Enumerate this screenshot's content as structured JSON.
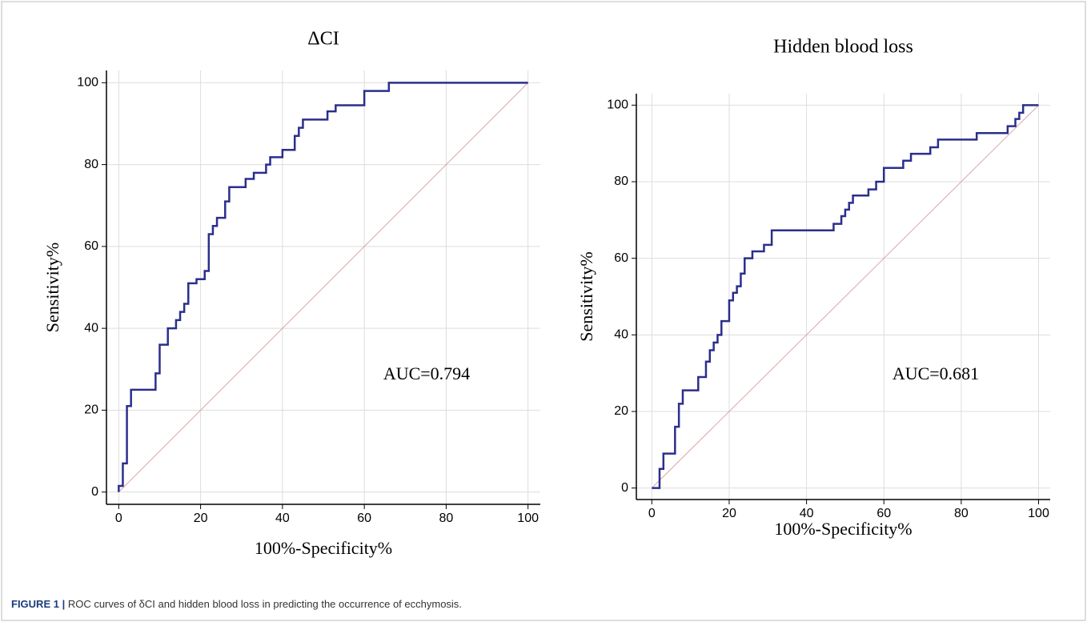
{
  "chart_data": [
    {
      "type": "line",
      "title": "ΔCI",
      "x_label": "100%-Specificity%",
      "y_label": "Sensitivity%",
      "annotation": "AUC=0.794",
      "xlim": [
        -3,
        103
      ],
      "ylim": [
        -3,
        103
      ],
      "xticks": [
        0,
        20,
        40,
        60,
        80,
        100
      ],
      "yticks": [
        0,
        20,
        40,
        60,
        80,
        100
      ],
      "grid": true,
      "series": [
        {
          "color": "#2b2e8c",
          "x": [
            0,
            0,
            1,
            1,
            2,
            2,
            3,
            3,
            9,
            9,
            10,
            10,
            12,
            12,
            14,
            14,
            15,
            15,
            16,
            16,
            17,
            17,
            19,
            19,
            21,
            21,
            22,
            22,
            23,
            23,
            24,
            24,
            26,
            26,
            27,
            27,
            31,
            31,
            33,
            33,
            36,
            36,
            37,
            37,
            40,
            40,
            43,
            43,
            44,
            44,
            45,
            45,
            51,
            51,
            53,
            53,
            60,
            60,
            66,
            66,
            100
          ],
          "values": [
            0,
            1.5,
            1.5,
            7,
            7,
            21,
            21,
            25,
            25,
            29,
            29,
            36,
            36,
            40,
            40,
            42,
            42,
            44,
            44,
            46,
            46,
            51,
            51,
            52,
            52,
            54,
            54,
            63,
            63,
            65,
            65,
            67,
            67,
            71,
            71,
            74.5,
            74.5,
            76.5,
            76.5,
            78,
            78,
            80,
            80,
            81.8,
            81.8,
            83.6,
            83.6,
            87,
            87,
            89,
            89,
            91,
            91,
            93,
            93,
            94.5,
            94.5,
            98,
            98,
            100,
            100
          ]
        },
        {
          "color": "#d9a8a8",
          "x": [
            0,
            100
          ],
          "values": [
            0,
            100
          ]
        }
      ]
    },
    {
      "type": "line",
      "title": "Hidden blood loss",
      "x_label": "100%-Specificity%",
      "y_label": "Sensitivity%",
      "annotation": "AUC=0.681",
      "xlim": [
        -4,
        103
      ],
      "ylim": [
        -3,
        103
      ],
      "xticks": [
        0,
        20,
        40,
        60,
        80,
        100
      ],
      "yticks": [
        0,
        20,
        40,
        60,
        80,
        100
      ],
      "grid": true,
      "series": [
        {
          "color": "#2b2e8c",
          "x": [
            0,
            2,
            2,
            3,
            3,
            6,
            6,
            7,
            7,
            8,
            8,
            12,
            12,
            14,
            14,
            15,
            15,
            16,
            16,
            17,
            17,
            18,
            18,
            20,
            20,
            21,
            21,
            22,
            22,
            23,
            23,
            24,
            24,
            26,
            26,
            29,
            29,
            31,
            31,
            47,
            47,
            49,
            49,
            50,
            50,
            51,
            51,
            52,
            52,
            56,
            56,
            58,
            58,
            60,
            60,
            65,
            65,
            67,
            67,
            72,
            72,
            74,
            74,
            84,
            84,
            92,
            92,
            94,
            94,
            95,
            95,
            96,
            96,
            100
          ],
          "values": [
            0,
            0,
            5,
            5,
            9,
            9,
            16,
            16,
            22,
            22,
            25.5,
            25.5,
            29,
            29,
            33,
            33,
            36,
            36,
            38,
            38,
            40,
            40,
            43.6,
            43.6,
            49,
            49,
            51,
            51,
            52.7,
            52.7,
            56,
            56,
            60,
            60,
            61.8,
            61.8,
            63.5,
            63.5,
            67.3,
            67.3,
            69,
            69,
            71,
            71,
            72.7,
            72.7,
            74.5,
            74.5,
            76.4,
            76.4,
            78,
            78,
            80,
            80,
            83.6,
            83.6,
            85.5,
            85.5,
            87.3,
            87.3,
            89,
            89,
            91,
            91,
            92.7,
            92.7,
            94.5,
            94.5,
            96.4,
            96.4,
            98,
            98,
            100,
            100
          ]
        },
        {
          "color": "#d9a8a8",
          "x": [
            0,
            100
          ],
          "values": [
            0,
            100
          ]
        }
      ]
    }
  ],
  "caption": {
    "label": "FIGURE 1 |",
    "text": "ROC curves of δCI and hidden blood loss in predicting the occurrence of ecchymosis."
  }
}
